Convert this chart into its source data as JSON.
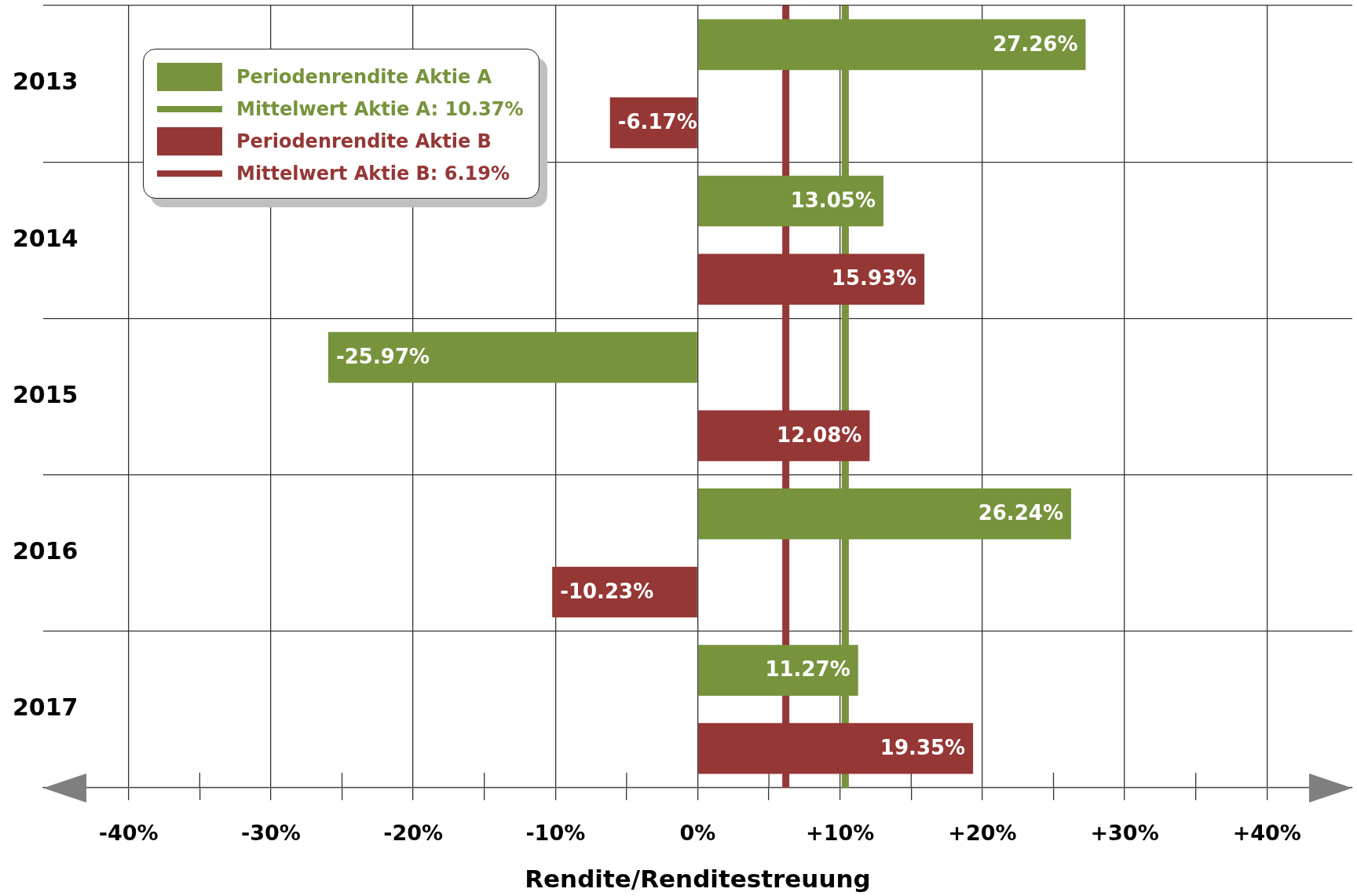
{
  "chart_data": {
    "type": "bar",
    "orientation": "horizontal",
    "categories": [
      "2013",
      "2014",
      "2015",
      "2016",
      "2017"
    ],
    "series": [
      {
        "name": "Periodenrendite Aktie A",
        "color": "#77933c",
        "values": [
          27.26,
          13.05,
          -25.97,
          26.24,
          11.27
        ],
        "value_labels": [
          "27.26%",
          "13.05%",
          "-25.97%",
          "26.24%",
          "11.27%"
        ]
      },
      {
        "name": "Periodenrendite Aktie B",
        "color": "#953735",
        "values": [
          -6.17,
          15.93,
          12.08,
          -10.23,
          19.35
        ],
        "value_labels": [
          "-6.17%",
          "15.93%",
          "12.08%",
          "-10.23%",
          "19.35%"
        ]
      }
    ],
    "xlabel": "Rendite/Renditestreuung",
    "xlim": [
      -46,
      46
    ],
    "xticks": [
      {
        "value": -40,
        "label": "-40%"
      },
      {
        "value": -35,
        "label": null
      },
      {
        "value": -30,
        "label": "-30%"
      },
      {
        "value": -25,
        "label": null
      },
      {
        "value": -20,
        "label": "-20%"
      },
      {
        "value": -15,
        "label": null
      },
      {
        "value": -10,
        "label": "-10%"
      },
      {
        "value": -5,
        "label": null
      },
      {
        "value": 0,
        "label": "0%"
      },
      {
        "value": 5,
        "label": null
      },
      {
        "value": 10,
        "label": "+10%"
      },
      {
        "value": 15,
        "label": null
      },
      {
        "value": 20,
        "label": "+20%"
      },
      {
        "value": 25,
        "label": null
      },
      {
        "value": 30,
        "label": "+30%"
      },
      {
        "value": 35,
        "label": null
      },
      {
        "value": 40,
        "label": "+40%"
      }
    ],
    "ref_lines": [
      {
        "axis": "x",
        "value": 10.37,
        "label": "Mittelwert Aktie A: 10.37%",
        "color": "#77933c"
      },
      {
        "axis": "x",
        "value": 6.19,
        "label": "Mittelwert Aktie B: 6.19%",
        "color": "#953735"
      }
    ],
    "grid": true,
    "legend": "top left"
  }
}
